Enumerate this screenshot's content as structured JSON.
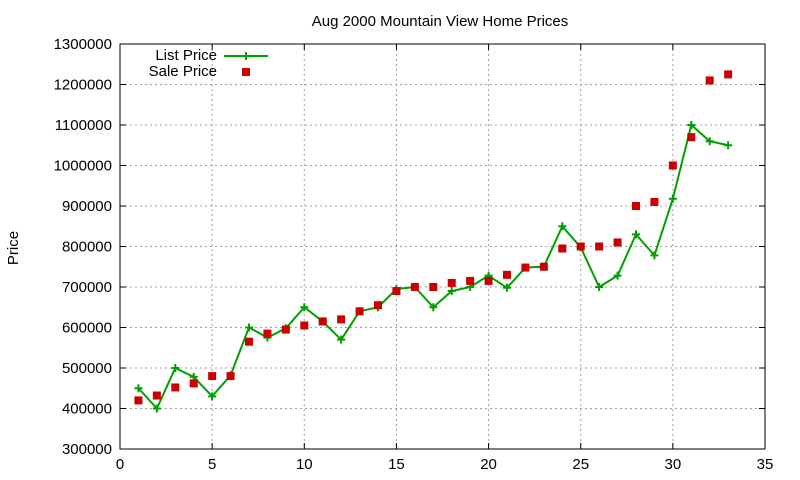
{
  "chart_data": {
    "type": "line",
    "title": "Aug 2000 Mountain View Home Prices",
    "xlabel": "",
    "ylabel": "Price",
    "xlim": [
      0,
      35
    ],
    "ylim": [
      300000,
      1300000
    ],
    "x_ticks": [
      0,
      5,
      10,
      15,
      20,
      25,
      30,
      35
    ],
    "y_ticks": [
      300000,
      400000,
      500000,
      600000,
      700000,
      800000,
      900000,
      1000000,
      1100000,
      1200000,
      1300000
    ],
    "grid": true,
    "legend_position": "top-left",
    "series": [
      {
        "name": "List Price",
        "style": "lines+crosses",
        "color": "#00a000",
        "x": [
          1,
          2,
          3,
          4,
          5,
          6,
          7,
          8,
          9,
          10,
          11,
          12,
          13,
          14,
          15,
          16,
          17,
          18,
          19,
          20,
          21,
          22,
          23,
          24,
          25,
          26,
          27,
          28,
          29,
          30,
          31,
          32,
          33
        ],
        "y": [
          450000,
          400000,
          500000,
          478000,
          430000,
          482000,
          600000,
          575000,
          598000,
          650000,
          615000,
          570000,
          640000,
          650000,
          695000,
          700000,
          650000,
          690000,
          700000,
          728000,
          698000,
          748000,
          750000,
          850000,
          798000,
          700000,
          728000,
          830000,
          778000,
          918000,
          1100000,
          1060000,
          1050000
        ]
      },
      {
        "name": "Sale Price",
        "style": "points",
        "color": "#cc0000",
        "x": [
          1,
          2,
          3,
          4,
          5,
          6,
          7,
          8,
          9,
          10,
          11,
          12,
          13,
          14,
          15,
          16,
          17,
          18,
          19,
          20,
          21,
          22,
          23,
          24,
          25,
          26,
          27,
          28,
          29,
          30,
          31,
          32,
          33
        ],
        "y": [
          420000,
          432000,
          452000,
          462000,
          480000,
          480000,
          565000,
          585000,
          595000,
          605000,
          615000,
          620000,
          640000,
          655000,
          690000,
          700000,
          700000,
          710000,
          715000,
          715000,
          730000,
          748000,
          750000,
          795000,
          800000,
          800000,
          810000,
          900000,
          910000,
          1000000,
          1070000,
          1210000,
          1225000
        ]
      }
    ]
  }
}
